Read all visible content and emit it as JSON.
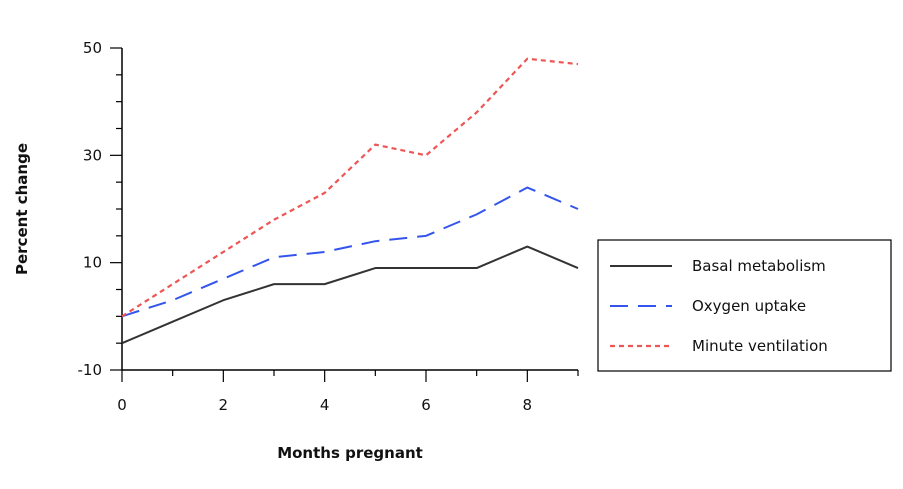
{
  "chart_data": {
    "type": "line",
    "xlabel": "Months pregnant",
    "ylabel": "Percent change",
    "xlim": [
      0,
      9
    ],
    "ylim": [
      -10,
      50
    ],
    "xticks": [
      0,
      2,
      4,
      6,
      8
    ],
    "yticks": [
      -10,
      10,
      30,
      50
    ],
    "xtick_labels": [
      "0",
      "2",
      "4",
      "6",
      "8"
    ],
    "ytick_labels": [
      "-10",
      "10",
      "30",
      "50"
    ],
    "grid": false,
    "legend_position": "right",
    "x": [
      0,
      1,
      2,
      3,
      4,
      5,
      6,
      7,
      8,
      9
    ],
    "series": [
      {
        "name": "Basal metabolism",
        "color": "#333333",
        "dash": "solid",
        "values": [
          -5,
          -1,
          3,
          6,
          6,
          9,
          9,
          9,
          13,
          9
        ]
      },
      {
        "name": "Oxygen uptake",
        "color": "#3355ee",
        "dash": "long-dash",
        "values": [
          0,
          3,
          7,
          11,
          12,
          14,
          15,
          19,
          24,
          20
        ]
      },
      {
        "name": "Minute ventilation",
        "color": "#ee5555",
        "dash": "short-dash",
        "values": [
          0,
          6,
          12,
          18,
          23,
          32,
          30,
          38,
          48,
          47
        ]
      }
    ]
  }
}
